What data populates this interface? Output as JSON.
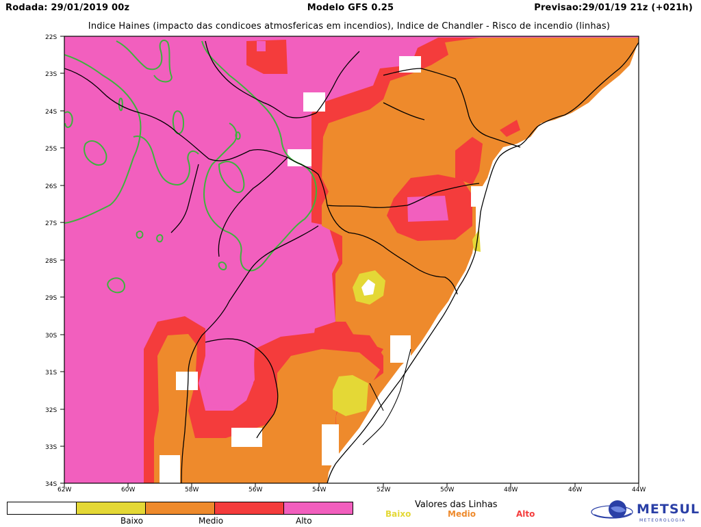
{
  "header": {
    "left": "Rodada: 29/01/2019 00z",
    "center": "Modelo GFS 0.25",
    "right": "Previsao:29/01/19 21z (+021h)",
    "subtitle": "Indice Haines (impacto das condicoes atmosfericas em incendios), Indice de Chandler - Risco de incendio (linhas)"
  },
  "map": {
    "lat_labels": [
      "22S",
      "23S",
      "24S",
      "25S",
      "26S",
      "27S",
      "28S",
      "29S",
      "30S",
      "31S",
      "32S",
      "33S",
      "34S"
    ],
    "lon_labels": [
      "62W",
      "60W",
      "58W",
      "56W",
      "54W",
      "52W",
      "50W",
      "48W",
      "46W",
      "44W"
    ],
    "colors": {
      "alto": "#f25fbe",
      "medio": "#f43c3c",
      "moderado": "#ee8a2c",
      "baixo": "#e4d836",
      "muito_baixo": "#ffffff",
      "chandler_line": "#3cb43c"
    }
  },
  "legend": {
    "colors": [
      "#ffffff",
      "#e4d836",
      "#ee8a2c",
      "#f43c3c",
      "#f25fbe"
    ],
    "labels": [
      "Baixo",
      "Medio",
      "Alto"
    ]
  },
  "lines_legend": {
    "title": "Valores das Linhas",
    "baixo": "Baixo",
    "medio": "Medio",
    "alto": "Alto",
    "baixo_color": "#e4d836",
    "medio_color": "#ee8a2c",
    "alto_color": "#f43c3c"
  },
  "logo": {
    "text": "METSUL",
    "subtitle": "METEOROLOGIA"
  }
}
